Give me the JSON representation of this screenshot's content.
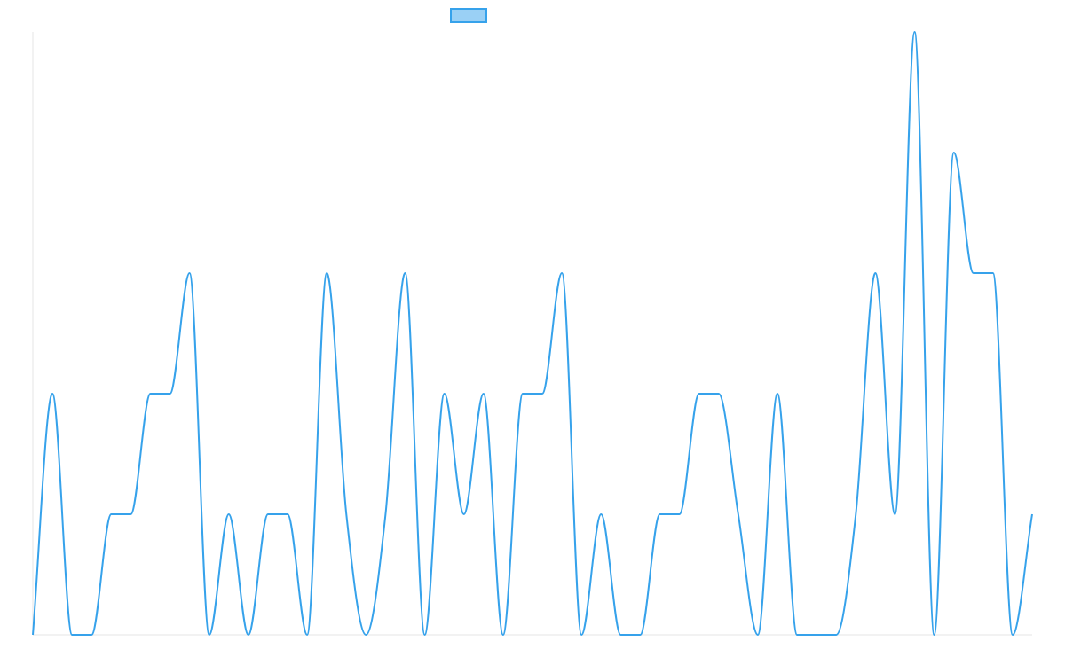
{
  "chart_data": {
    "type": "line",
    "categories": [
      null,
      null,
      null,
      null,
      null,
      null,
      null,
      null,
      null,
      null,
      null,
      null,
      null,
      null,
      null,
      null,
      null,
      null,
      null,
      null,
      null,
      null,
      null,
      null,
      null,
      null,
      null,
      null,
      null,
      null,
      null,
      null,
      null,
      null,
      null,
      null,
      null,
      null,
      null,
      null,
      null,
      null,
      null,
      null,
      null,
      null,
      null,
      null,
      null,
      null,
      null,
      null
    ],
    "series": [
      {
        "color": "#36a2eb",
        "values": [
          0,
          2,
          0,
          0,
          1,
          1,
          2,
          2,
          3,
          0,
          1,
          0,
          1,
          1,
          0,
          3,
          1,
          0,
          1,
          3,
          0,
          2,
          1,
          2,
          0,
          2,
          2,
          3,
          0,
          1,
          0,
          0,
          1,
          1,
          2,
          2,
          1,
          0,
          2,
          0,
          0,
          0,
          1,
          3,
          1,
          5,
          0,
          4,
          3,
          3,
          0,
          1
        ]
      }
    ],
    "ylim": [
      0,
      5
    ],
    "smooth": true,
    "legend": "top"
  }
}
